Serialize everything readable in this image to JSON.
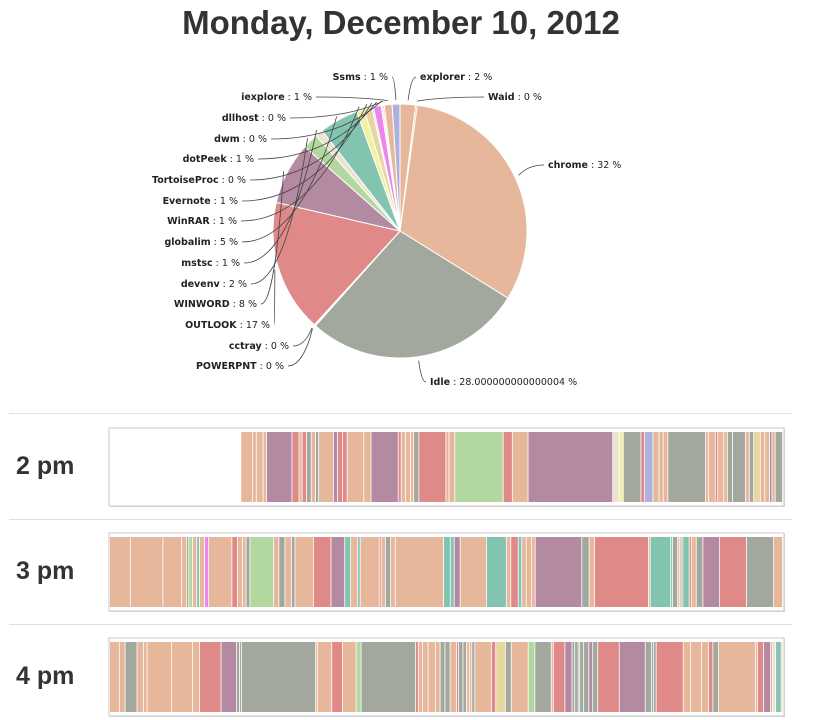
{
  "page": {
    "title": "Monday, December 10, 2012"
  },
  "chart_data": [
    {
      "type": "pie",
      "label_unit": "%",
      "slices": [
        {
          "name": "explorer",
          "label": "2",
          "value": 2,
          "color": "#e6b79b"
        },
        {
          "name": "Waid",
          "label": "0",
          "value": 0.2,
          "color": "#cfa68a"
        },
        {
          "name": "chrome",
          "label": "32",
          "value": 32,
          "color": "#e6b79b"
        },
        {
          "name": "Idle",
          "label": "28.000000000000004",
          "value": 28,
          "color": "#a2a89e"
        },
        {
          "name": "POWERPNT",
          "label": "0",
          "value": 0.1,
          "color": "#c9a48c"
        },
        {
          "name": "cctray",
          "label": "0",
          "value": 0.1,
          "color": "#b9b9b9"
        },
        {
          "name": "OUTLOOK",
          "label": "17",
          "value": 17,
          "color": "#df8a89"
        },
        {
          "name": "WINWORD",
          "label": "8",
          "value": 8,
          "color": "#b48aa3"
        },
        {
          "name": "devenv",
          "label": "2",
          "value": 2,
          "color": "#b2d89f"
        },
        {
          "name": "mstsc",
          "label": "1",
          "value": 1,
          "color": "#ece3cf"
        },
        {
          "name": "globalim",
          "label": "5",
          "value": 5,
          "color": "#82c4b0"
        },
        {
          "name": "WinRAR",
          "label": "1",
          "value": 1,
          "color": "#f1f1a4"
        },
        {
          "name": "Evernote",
          "label": "1",
          "value": 1,
          "color": "#e6d6a0"
        },
        {
          "name": "TortoiseProc",
          "label": "0",
          "value": 0.2,
          "color": "#c0c0c0"
        },
        {
          "name": "dotPeek",
          "label": "1",
          "value": 1,
          "color": "#ec86ea"
        },
        {
          "name": "dwm",
          "label": "0",
          "value": 0.2,
          "color": "#d0d0d0"
        },
        {
          "name": "dllhost",
          "label": "0",
          "value": 0.2,
          "color": "#e0c0a0"
        },
        {
          "name": "iexplore",
          "label": "1",
          "value": 1,
          "color": "#e6b79b"
        },
        {
          "name": "Ssms",
          "label": "1",
          "value": 1,
          "color": "#aeb0e0"
        }
      ]
    },
    {
      "type": "timeline",
      "rows": [
        {
          "label": "2 pm",
          "empty_until": 0.195,
          "seed": 21
        },
        {
          "label": "3 pm",
          "empty_until": 0,
          "seed": 37
        },
        {
          "label": "4 pm",
          "empty_until": 0,
          "seed": 53
        }
      ]
    }
  ]
}
